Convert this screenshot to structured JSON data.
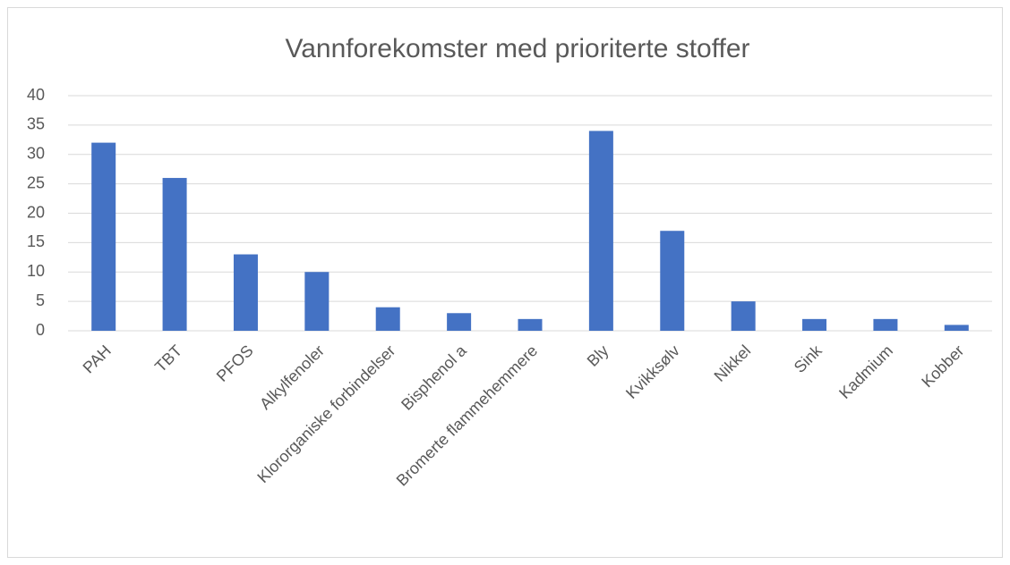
{
  "chart_data": {
    "type": "bar",
    "title": "Vannforekomster med prioriterte stoffer",
    "categories": [
      "PAH",
      "TBT",
      "PFOS",
      "Alkylfenoler",
      "Klororganiske forbindelser",
      "Bisphenol a",
      "Bromerte flammehemmere",
      "Bly",
      "Kvikksølv",
      "Nikkel",
      "Sink",
      "Kadmium",
      "Kobber"
    ],
    "values": [
      32,
      26,
      13,
      10,
      4,
      3,
      2,
      34,
      17,
      5,
      2,
      2,
      1
    ],
    "color": "#4472c4",
    "ylim": [
      0,
      40
    ],
    "yticks": [
      0,
      5,
      10,
      15,
      20,
      25,
      30,
      35,
      40
    ],
    "grid": true
  }
}
